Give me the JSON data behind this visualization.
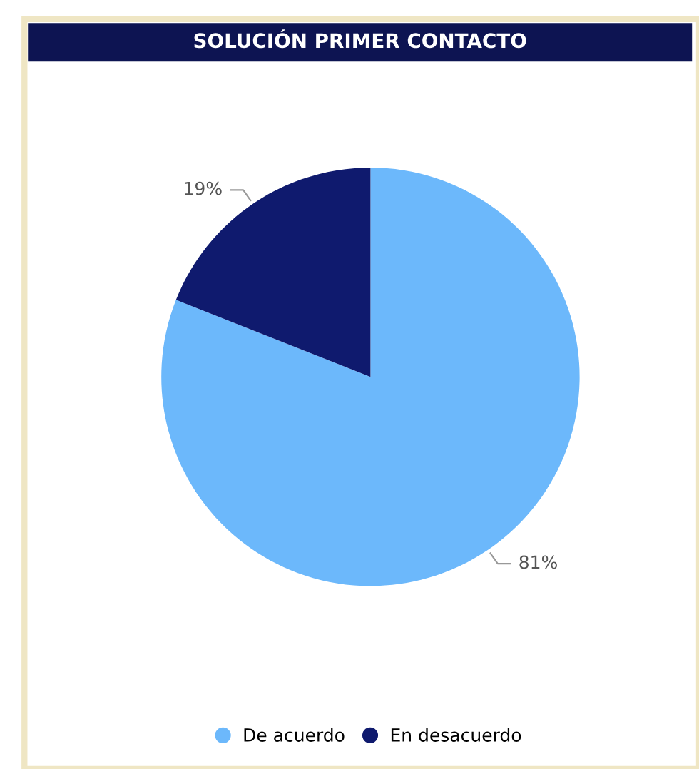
{
  "chart_data": {
    "type": "pie",
    "title": "SOLUCIÓN PRIMER CONTACTO",
    "categories": [
      "De acuerdo",
      "En desacuerdo"
    ],
    "values": [
      81,
      19
    ],
    "colors": [
      "#6cb8fb",
      "#0f1a6e"
    ],
    "value_labels": [
      "81%",
      "19%"
    ],
    "legend": "bottom"
  }
}
